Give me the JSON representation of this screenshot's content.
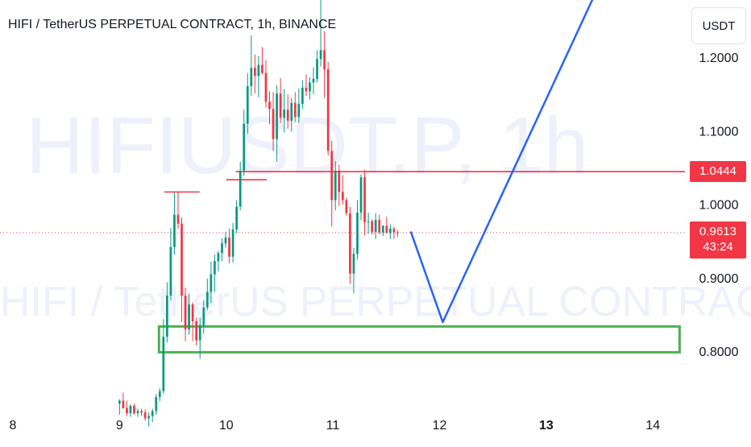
{
  "header": {
    "title": "HIFI / TetherUS PERPETUAL CONTRACT, 1h, BINANCE"
  },
  "currency_button": {
    "label": "USDT"
  },
  "watermark": {
    "symbol": "HIFIUSDT.P, 1h",
    "description": "HIFI / TetherUS PERPETUAL CONTRACT"
  },
  "price_boxes": {
    "level": {
      "value": "1.0444",
      "color": "#f23645"
    },
    "current": {
      "value": "0.9613",
      "countdown": "43:24",
      "color": "#f23645"
    }
  },
  "chart_data": {
    "type": "candlestick",
    "x_ticks": [
      "8",
      "9",
      "10",
      "11",
      "12",
      "13",
      "14"
    ],
    "x_tick_values": [
      8,
      9,
      10,
      11,
      12,
      13,
      14
    ],
    "y_ticks": [
      "1.2000",
      "1.1000",
      "1.0000",
      "0.9000",
      "0.8000"
    ],
    "y_tick_values": [
      1.2,
      1.1,
      1.0,
      0.9,
      0.8
    ],
    "ylim": [
      0.708,
      1.278
    ],
    "xlim": [
      7.94,
      14.3
    ],
    "colors": {
      "up": "#089981",
      "down": "#f23645",
      "projection": "#2962ff",
      "zone": "#4caf50"
    },
    "candles": [
      [
        0.7287,
        0.7347,
        0.7137,
        0.7327
      ],
      [
        0.7327,
        0.7437,
        0.7217,
        0.7227
      ],
      [
        0.7227,
        0.7327,
        0.7117,
        0.7157
      ],
      [
        0.7157,
        0.7277,
        0.7107,
        0.7257
      ],
      [
        0.7257,
        0.7287,
        0.7137,
        0.7157
      ],
      [
        0.7157,
        0.7217,
        0.7107,
        0.7187
      ],
      [
        0.7187,
        0.7217,
        0.7117,
        0.7167
      ],
      [
        0.7167,
        0.7207,
        0.7057,
        0.7087
      ],
      [
        0.7087,
        0.7167,
        0.6977,
        0.7117
      ],
      [
        0.7117,
        0.7217,
        0.7037,
        0.7187
      ],
      [
        0.7187,
        0.7417,
        0.7137,
        0.7377
      ],
      [
        0.7377,
        0.7497,
        0.7317,
        0.7457
      ],
      [
        0.7457,
        0.8437,
        0.7417,
        0.8197
      ],
      [
        0.8197,
        0.8937,
        0.8117,
        0.8757
      ],
      [
        0.8757,
        0.9677,
        0.8687,
        0.9417
      ],
      [
        0.9417,
        1.0157,
        0.9317,
        0.9857
      ],
      [
        0.9857,
        1.0167,
        0.9667,
        0.9737
      ],
      [
        0.9737,
        0.9817,
        0.8397,
        0.8757
      ],
      [
        0.8757,
        0.8867,
        0.8137,
        0.8297
      ],
      [
        0.8297,
        0.8787,
        0.8227,
        0.8637
      ],
      [
        0.8637,
        0.8667,
        0.8137,
        0.8407
      ],
      [
        0.8407,
        0.8457,
        0.8077,
        0.8147
      ],
      [
        0.8147,
        0.8457,
        0.7897,
        0.8357
      ],
      [
        0.8357,
        0.8697,
        0.8237,
        0.8597
      ],
      [
        0.8597,
        0.8987,
        0.8557,
        0.8807
      ],
      [
        0.8807,
        0.9217,
        0.8657,
        0.9047
      ],
      [
        0.9047,
        0.9317,
        0.8807,
        0.9227
      ],
      [
        0.9227,
        0.9367,
        0.9087,
        0.9337
      ],
      [
        0.9337,
        0.9537,
        0.9227,
        0.9467
      ],
      [
        0.9467,
        0.9627,
        0.9407,
        0.9547
      ],
      [
        0.9547,
        0.9667,
        0.9197,
        0.9287
      ],
      [
        0.9287,
        0.9747,
        0.9207,
        0.9657
      ],
      [
        0.9657,
        1.0057,
        0.9607,
        0.9967
      ],
      [
        0.9967,
        1.0577,
        0.9917,
        1.0457
      ],
      [
        1.0457,
        1.1287,
        1.0387,
        1.1097
      ],
      [
        1.1097,
        1.1787,
        1.0957,
        1.1607
      ],
      [
        1.1607,
        1.2297,
        1.1477,
        1.1857
      ],
      [
        1.1857,
        1.2037,
        1.1507,
        1.1747
      ],
      [
        1.1747,
        1.2017,
        1.1457,
        1.1897
      ],
      [
        1.1897,
        1.2137,
        1.1767,
        1.1787
      ],
      [
        1.1787,
        1.1957,
        1.1317,
        1.1397
      ],
      [
        1.1397,
        1.1537,
        1.1087,
        1.1297
      ],
      [
        1.1297,
        1.1527,
        1.0727,
        1.0887
      ],
      [
        1.0887,
        1.1617,
        1.0577,
        1.1507
      ],
      [
        1.1507,
        1.1717,
        1.1107,
        1.1177
      ],
      [
        1.1177,
        1.1567,
        1.0977,
        1.1287
      ],
      [
        1.1287,
        1.1497,
        1.1027,
        1.1137
      ],
      [
        1.1137,
        1.1447,
        1.0987,
        1.1377
      ],
      [
        1.1377,
        1.1527,
        1.1117,
        1.1187
      ],
      [
        1.1187,
        1.1577,
        1.1107,
        1.1367
      ],
      [
        1.1367,
        1.1687,
        1.1297,
        1.1587
      ],
      [
        1.1587,
        1.1767,
        1.1477,
        1.1537
      ],
      [
        1.1537,
        1.1727,
        1.1427,
        1.1657
      ],
      [
        1.1657,
        1.1867,
        1.1497,
        1.1707
      ],
      [
        1.1707,
        1.2097,
        1.1657,
        1.1977
      ],
      [
        1.1977,
        1.2787,
        1.1877,
        1.2097
      ],
      [
        1.2097,
        1.2357,
        1.1447,
        1.1837
      ],
      [
        1.1837,
        1.1937,
        1.0667,
        1.0727
      ],
      [
        1.0727,
        1.0867,
        0.9697,
        1.0057
      ],
      [
        1.0057,
        1.0587,
        0.9917,
        1.0457
      ],
      [
        1.0457,
        1.0537,
        0.9977,
        1.0167
      ],
      [
        1.0167,
        1.0397,
        0.9997,
        1.0057
      ],
      [
        1.0057,
        1.0087,
        0.9847,
        0.9877
      ],
      [
        0.9877,
        0.9967,
        0.8917,
        0.9057
      ],
      [
        0.9057,
        0.9407,
        0.8787,
        0.9327
      ],
      [
        0.9327,
        1.0057,
        0.9247,
        0.9887
      ],
      [
        0.9887,
        1.0407,
        0.9787,
        1.0367
      ],
      [
        1.0367,
        1.0467,
        0.9577,
        0.9757
      ],
      [
        0.9757,
        0.9887,
        0.9597,
        0.9767
      ],
      [
        0.9767,
        0.9797,
        0.9587,
        0.9627
      ],
      [
        0.9627,
        0.9877,
        0.9527,
        0.9787
      ],
      [
        0.9787,
        0.9857,
        0.9587,
        0.9617
      ],
      [
        0.9617,
        0.9717,
        0.9567,
        0.9707
      ],
      [
        0.9707,
        0.9827,
        0.9607,
        0.9607
      ],
      [
        0.9607,
        0.9727,
        0.9527,
        0.9667
      ],
      [
        0.9667,
        0.9697,
        0.9527,
        0.9617
      ],
      [
        0.9617,
        0.9647,
        0.9557,
        0.9613
      ]
    ],
    "first_candle_x": 9.0,
    "candle_step": 0.0343,
    "horizontal_lines": [
      {
        "y": 1.0444,
        "x_start": 10.09,
        "x_end": 14.3,
        "color": "#f23645"
      },
      {
        "y": 1.0167,
        "x_start": 9.42,
        "x_end": 9.75,
        "color": "#f23645"
      },
      {
        "y": 1.0333,
        "x_start": 10.0,
        "x_end": 10.38,
        "color": "#f23645"
      }
    ],
    "zone": {
      "x_start": 9.37,
      "x_end": 14.25,
      "y_low": 0.7986,
      "y_high": 0.8337
    },
    "projection": [
      [
        11.73,
        0.9629
      ],
      [
        12.03,
        0.8396
      ],
      [
        13.5,
        1.2996
      ]
    ],
    "current_price": 0.9613
  }
}
